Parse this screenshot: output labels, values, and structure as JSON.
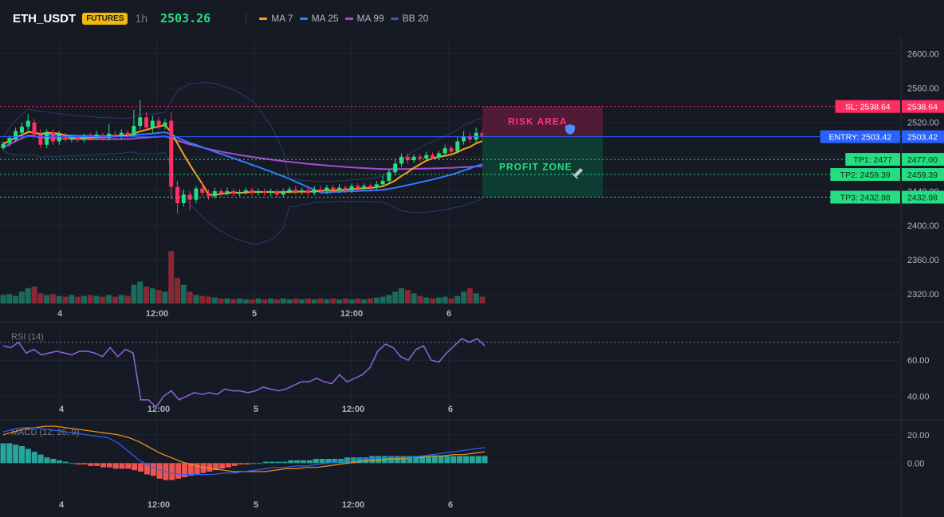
{
  "header": {
    "symbol": "ETH_USDT",
    "badge": "FUTURES",
    "timeframe": "1h",
    "price": "2503.26",
    "legend": [
      {
        "name": "MA 7",
        "color": "#f7a21b"
      },
      {
        "name": "MA 25",
        "color": "#2f7bff"
      },
      {
        "name": "MA 99",
        "color": "#a84bd4"
      },
      {
        "name": "BB 20",
        "color": "#3d5aa8"
      }
    ]
  },
  "colors": {
    "up": "#26de81",
    "down": "#ff2e63",
    "up_vol": "#1a6b5a",
    "down_vol": "#8a2735",
    "ma7": "#f7a21b",
    "ma25": "#2f7bff",
    "ma99": "#a84bd4",
    "bb": "#2a3a6e",
    "rsi": "#8a5fd4",
    "macd": "#2962ff",
    "signal": "#f7931a"
  },
  "x_labels": [
    "4",
    "12:00",
    "5",
    "12:00",
    "6"
  ],
  "chart_data": [
    {
      "type": "candlestick",
      "title": "",
      "y_ticks": [
        "2600.00",
        "2560.00",
        "2520.00",
        "2480.00",
        "2440.00",
        "2400.00",
        "2360.00",
        "2320.00"
      ],
      "ylim": [
        2310,
        2620
      ],
      "levels": [
        {
          "label": "SL: 2538.64",
          "value": 2538.64,
          "price": "2538.64",
          "color": "#ff2e63"
        },
        {
          "label": "ENTRY: 2503.42",
          "value": 2503.42,
          "price": "2503.42",
          "color": "#2962ff"
        },
        {
          "label": "TP1: 2477",
          "value": 2477.0,
          "price": "2477.00",
          "color": "#26de81"
        },
        {
          "label": "TP2: 2459.39",
          "value": 2459.39,
          "price": "2459.39",
          "color": "#26de81"
        },
        {
          "label": "TP3: 2432.98",
          "value": 2432.98,
          "price": "2432.98",
          "color": "#26de81"
        }
      ],
      "risk_label": "RISK AREA",
      "profit_label": "PROFIT ZONE",
      "candles": [
        [
          2490,
          2495,
          2488,
          2498
        ],
        [
          2496,
          2502,
          2492,
          2505
        ],
        [
          2500,
          2510,
          2497,
          2514
        ],
        [
          2508,
          2515,
          2504,
          2520
        ],
        [
          2515,
          2522,
          2510,
          2530
        ],
        [
          2520,
          2506,
          2502,
          2524
        ],
        [
          2506,
          2494,
          2490,
          2512
        ],
        [
          2494,
          2508,
          2490,
          2512
        ],
        [
          2508,
          2498,
          2494,
          2512
        ],
        [
          2498,
          2506,
          2494,
          2510
        ],
        [
          2504,
          2500,
          2497,
          2508
        ],
        [
          2500,
          2503,
          2497,
          2506
        ],
        [
          2503,
          2500,
          2497,
          2506
        ],
        [
          2500,
          2504,
          2497,
          2507
        ],
        [
          2504,
          2503,
          2499,
          2508
        ],
        [
          2503,
          2506,
          2500,
          2510
        ],
        [
          2505,
          2502,
          2499,
          2508
        ],
        [
          2502,
          2507,
          2499,
          2518
        ],
        [
          2506,
          2504,
          2500,
          2510
        ],
        [
          2504,
          2508,
          2500,
          2512
        ],
        [
          2508,
          2505,
          2502,
          2511
        ],
        [
          2505,
          2516,
          2503,
          2535
        ],
        [
          2516,
          2526,
          2512,
          2546
        ],
        [
          2526,
          2514,
          2510,
          2532
        ],
        [
          2514,
          2522,
          2508,
          2528
        ],
        [
          2522,
          2516,
          2512,
          2526
        ],
        [
          2516,
          2520,
          2512,
          2524
        ],
        [
          2522,
          2445,
          2430,
          2532
        ],
        [
          2445,
          2426,
          2414,
          2452
        ],
        [
          2426,
          2436,
          2422,
          2442
        ],
        [
          2436,
          2430,
          2418,
          2440
        ],
        [
          2430,
          2443,
          2426,
          2446
        ],
        [
          2443,
          2438,
          2434,
          2450
        ],
        [
          2438,
          2434,
          2430,
          2442
        ],
        [
          2434,
          2440,
          2431,
          2444
        ],
        [
          2440,
          2438,
          2434,
          2443
        ],
        [
          2438,
          2440,
          2435,
          2444
        ],
        [
          2440,
          2437,
          2434,
          2443
        ],
        [
          2437,
          2439,
          2434,
          2442
        ],
        [
          2439,
          2441,
          2436,
          2444
        ],
        [
          2441,
          2438,
          2435,
          2444
        ],
        [
          2438,
          2440,
          2435,
          2443
        ],
        [
          2440,
          2438,
          2435,
          2443
        ],
        [
          2438,
          2440,
          2434,
          2443
        ],
        [
          2440,
          2436,
          2433,
          2442
        ],
        [
          2436,
          2440,
          2433,
          2443
        ],
        [
          2440,
          2442,
          2437,
          2445
        ],
        [
          2442,
          2439,
          2436,
          2446
        ],
        [
          2439,
          2441,
          2436,
          2444
        ],
        [
          2441,
          2438,
          2435,
          2444
        ],
        [
          2438,
          2442,
          2435,
          2446
        ],
        [
          2442,
          2440,
          2437,
          2446
        ],
        [
          2440,
          2444,
          2437,
          2447
        ],
        [
          2444,
          2441,
          2438,
          2447
        ],
        [
          2441,
          2444,
          2438,
          2448
        ],
        [
          2444,
          2441,
          2438,
          2447
        ],
        [
          2441,
          2446,
          2438,
          2449
        ],
        [
          2446,
          2443,
          2440,
          2449
        ],
        [
          2443,
          2446,
          2440,
          2449
        ],
        [
          2446,
          2444,
          2441,
          2449
        ],
        [
          2444,
          2448,
          2441,
          2452
        ],
        [
          2448,
          2452,
          2446,
          2458
        ],
        [
          2452,
          2462,
          2449,
          2466
        ],
        [
          2462,
          2472,
          2458,
          2478
        ],
        [
          2472,
          2480,
          2468,
          2484
        ],
        [
          2480,
          2476,
          2472,
          2484
        ],
        [
          2476,
          2480,
          2473,
          2483
        ],
        [
          2480,
          2478,
          2475,
          2483
        ],
        [
          2478,
          2482,
          2476,
          2486
        ],
        [
          2482,
          2479,
          2477,
          2485
        ],
        [
          2479,
          2484,
          2476,
          2487
        ],
        [
          2484,
          2490,
          2481,
          2494
        ],
        [
          2490,
          2486,
          2483,
          2493
        ],
        [
          2486,
          2498,
          2484,
          2504
        ],
        [
          2498,
          2504,
          2494,
          2510
        ],
        [
          2504,
          2500,
          2496,
          2508
        ],
        [
          2500,
          2508,
          2497,
          2514
        ],
        [
          2508,
          2503,
          2500,
          2512
        ]
      ],
      "volume": [
        10,
        11,
        9,
        14,
        18,
        20,
        12,
        10,
        11,
        9,
        8,
        10,
        8,
        9,
        10,
        9,
        8,
        10,
        8,
        10,
        9,
        22,
        26,
        20,
        18,
        16,
        14,
        62,
        30,
        22,
        14,
        10,
        9,
        8,
        7,
        6,
        6,
        5,
        6,
        5,
        5,
        6,
        5,
        6,
        5,
        6,
        5,
        6,
        5,
        6,
        5,
        6,
        5,
        6,
        5,
        6,
        5,
        6,
        5,
        6,
        7,
        8,
        10,
        14,
        18,
        16,
        12,
        9,
        7,
        6,
        7,
        8,
        6,
        9,
        14,
        18,
        12,
        8
      ]
    },
    {
      "type": "line",
      "title": "RSI (14)",
      "y_ticks": [
        "60.00",
        "40.00"
      ],
      "ylim": [
        30,
        80
      ],
      "overbought": 70,
      "values": [
        68,
        67,
        70,
        64,
        66,
        63,
        64,
        65,
        64,
        63,
        65,
        65,
        64,
        62,
        67,
        62,
        66,
        64,
        38,
        38,
        34,
        40,
        43,
        38,
        40,
        42,
        41,
        42,
        41,
        44,
        43,
        43,
        42,
        43,
        45,
        44,
        43,
        44,
        46,
        48,
        48,
        50,
        48,
        47,
        52,
        48,
        50,
        52,
        56,
        65,
        69,
        67,
        62,
        60,
        66,
        68,
        60,
        59,
        64,
        68,
        72,
        70,
        72,
        68
      ]
    },
    {
      "type": "bar",
      "title": "MACD (12, 26, 9)",
      "y_ticks": [
        "20.00",
        "0.00"
      ],
      "ylim": [
        -24,
        30
      ],
      "histogram": [
        14,
        14,
        13,
        12,
        10,
        8,
        6,
        4,
        3,
        2,
        1,
        0,
        -1,
        -1,
        -2,
        -2,
        -3,
        -3,
        -4,
        -4,
        -4,
        -5,
        -6,
        -8,
        -9,
        -11,
        -12,
        -12,
        -11,
        -10,
        -9,
        -8,
        -7,
        -6,
        -5,
        -4,
        -3,
        -2,
        -1,
        -1,
        0,
        0,
        1,
        1,
        1,
        1,
        2,
        2,
        2,
        2,
        3,
        3,
        3,
        3,
        3,
        4,
        4,
        4,
        4,
        5,
        5,
        5,
        5,
        5,
        5,
        5,
        5,
        5,
        5,
        5,
        5,
        5,
        5,
        5,
        5,
        5,
        5,
        5
      ],
      "macd": [
        22,
        24,
        25,
        25,
        24,
        23,
        22,
        21,
        20,
        19,
        18,
        14,
        8,
        2,
        -2,
        -5,
        -7,
        -8,
        -8,
        -8,
        -8,
        -7,
        -7,
        -6,
        -5,
        -4,
        -3,
        -3,
        -2,
        -2,
        -1,
        0,
        1,
        2,
        3,
        3,
        4,
        4,
        4,
        4,
        5,
        6,
        7,
        8,
        9,
        10,
        11
      ],
      "signal": [
        20,
        22,
        24,
        25,
        26,
        26,
        25,
        24,
        23,
        22,
        21,
        20,
        18,
        15,
        11,
        7,
        4,
        1,
        -1,
        -3,
        -4,
        -5,
        -6,
        -6,
        -6,
        -6,
        -5,
        -4,
        -4,
        -3,
        -3,
        -2,
        -1,
        0,
        1,
        2,
        2,
        3,
        3,
        4,
        4,
        5,
        5,
        6,
        6,
        7,
        8
      ]
    }
  ]
}
